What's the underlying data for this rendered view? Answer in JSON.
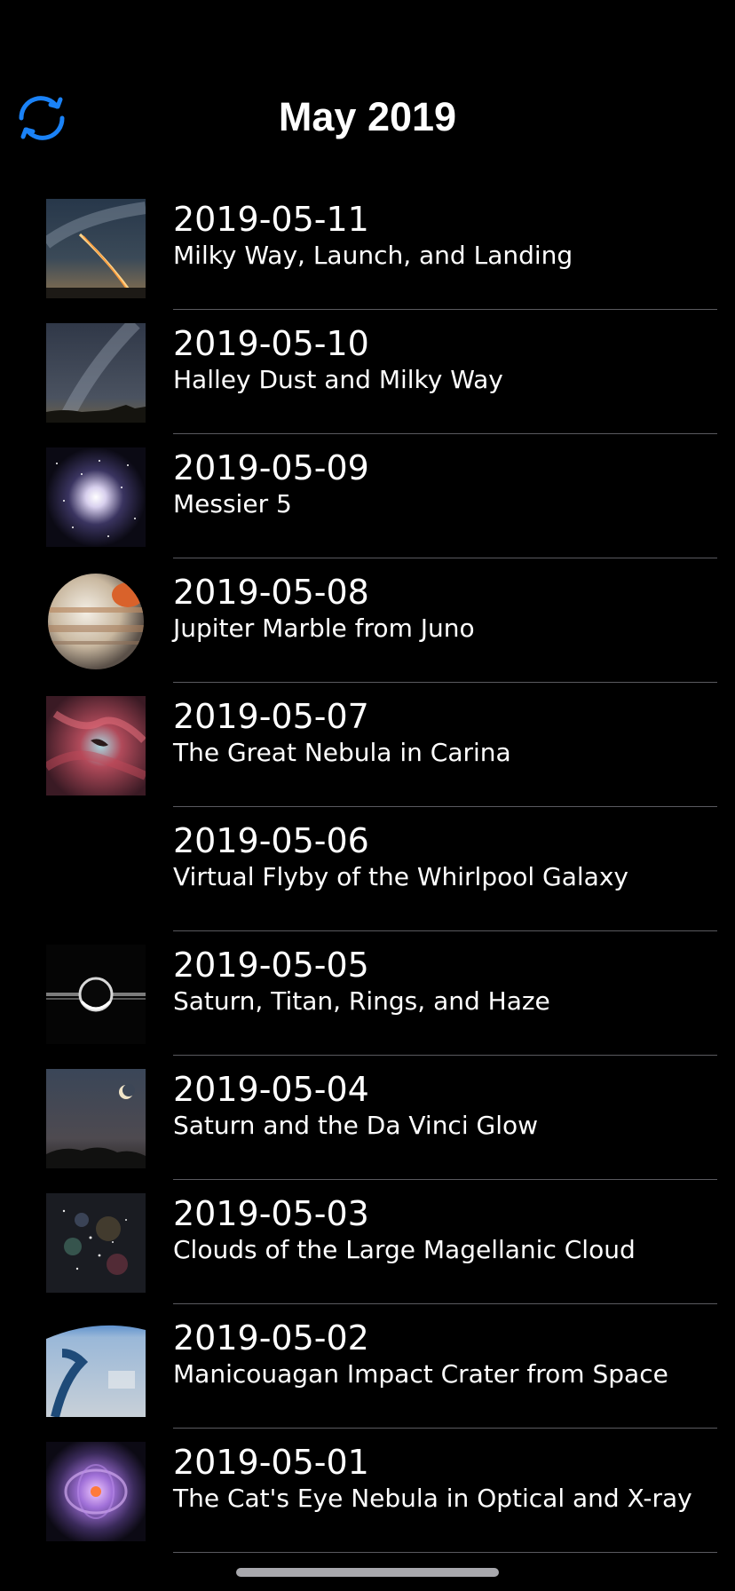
{
  "header": {
    "title": "May 2019",
    "refresh_icon": "refresh-icon"
  },
  "colors": {
    "background": "#000000",
    "accent": "#1a82f7",
    "text": "#ffffff",
    "divider": "#5a5a5f"
  },
  "entries": [
    {
      "date": "2019-05-11",
      "title": "Milky Way, Launch, and Landing"
    },
    {
      "date": "2019-05-10",
      "title": "Halley Dust and Milky Way"
    },
    {
      "date": "2019-05-09",
      "title": "Messier 5"
    },
    {
      "date": "2019-05-08",
      "title": "Jupiter Marble from Juno"
    },
    {
      "date": "2019-05-07",
      "title": "The Great Nebula in Carina"
    },
    {
      "date": "2019-05-06",
      "title": "Virtual Flyby of the Whirlpool Galaxy"
    },
    {
      "date": "2019-05-05",
      "title": "Saturn, Titan, Rings, and Haze"
    },
    {
      "date": "2019-05-04",
      "title": "Saturn and the Da Vinci Glow"
    },
    {
      "date": "2019-05-03",
      "title": "Clouds of the Large Magellanic Cloud"
    },
    {
      "date": "2019-05-02",
      "title": "Manicouagan Impact Crater from Space"
    },
    {
      "date": "2019-05-01",
      "title": "The Cat's Eye Nebula in Optical and X-ray"
    }
  ]
}
